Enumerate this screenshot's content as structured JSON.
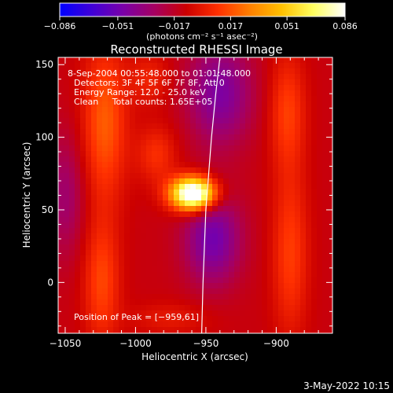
{
  "chart_data": {
    "type": "heatmap",
    "title": "Reconstructed RHESSI Image",
    "xlabel": "Heliocentric X (arcsec)",
    "ylabel": "Heliocentric Y (arcsec)",
    "xlim": [
      -1055,
      -860
    ],
    "ylim": [
      -35,
      155
    ],
    "xticks": [
      -1050,
      -1000,
      -950,
      -900
    ],
    "xtick_labels": [
      "−1050",
      "−1000",
      "−950",
      "−900"
    ],
    "yticks": [
      0,
      50,
      100,
      150
    ],
    "ytick_labels": [
      "0",
      "50",
      "100",
      "150"
    ],
    "colorbar": {
      "range": [
        -0.086,
        0.086
      ],
      "ticks": [
        -0.086,
        -0.051,
        -0.017,
        0.017,
        0.051,
        0.086
      ],
      "tick_labels": [
        "−0.086",
        "−0.051",
        "−0.017",
        "0.017",
        "0.051",
        "0.086"
      ],
      "units_label": "(photons cm⁻² s⁻¹ asec⁻²)",
      "colors": [
        "#0000ff",
        "#3f00d8",
        "#7a00a8",
        "#a60060",
        "#cc0000",
        "#ff3000",
        "#ff8000",
        "#ffc000",
        "#ffff60",
        "#ffffff"
      ]
    },
    "annotations": [
      " 8-Sep-2004 00:55:48.000 to 01:01:48.000",
      "Detectors: 3F 4F 5F 6F 7F 8F, Att 0",
      "Energy Range: 12.0 - 25.0 keV",
      "Clean     Total counts: 1.65E+05"
    ],
    "peak_label": "Position of Peak = [−959,61]",
    "peak": {
      "x": -959,
      "y": 61,
      "value": 0.086
    },
    "limb_curve": {
      "x": [
        -940,
        -943,
        -946,
        -948,
        -950,
        -951,
        -952,
        -953
      ],
      "y": [
        155,
        130,
        100,
        75,
        50,
        25,
        0,
        -35
      ]
    },
    "sources": [
      {
        "x": -959,
        "y": 61,
        "amp": 0.125,
        "sx": 11,
        "sy": 8
      },
      {
        "x": -1022,
        "y": 110,
        "amp": 0.032,
        "sx": 11,
        "sy": 38
      },
      {
        "x": -1024,
        "y": 0,
        "amp": 0.026,
        "sx": 9,
        "sy": 30
      },
      {
        "x": -892,
        "y": 118,
        "amp": 0.024,
        "sx": 9,
        "sy": 28
      },
      {
        "x": -890,
        "y": 20,
        "amp": 0.024,
        "sx": 9,
        "sy": 40
      },
      {
        "x": -990,
        "y": 140,
        "amp": 0.016,
        "sx": 10,
        "sy": 12
      },
      {
        "x": -985,
        "y": 88,
        "amp": 0.02,
        "sx": 10,
        "sy": 14
      },
      {
        "x": -945,
        "y": 30,
        "amp": -0.038,
        "sx": 14,
        "sy": 22
      },
      {
        "x": -940,
        "y": 130,
        "amp": -0.034,
        "sx": 16,
        "sy": 25
      },
      {
        "x": -1050,
        "y": 60,
        "amp": -0.02,
        "sx": 10,
        "sy": 30
      },
      {
        "x": -975,
        "y": -25,
        "amp": 0.012,
        "sx": 20,
        "sy": 8
      }
    ]
  },
  "timestamp": "3-May-2022 10:15"
}
